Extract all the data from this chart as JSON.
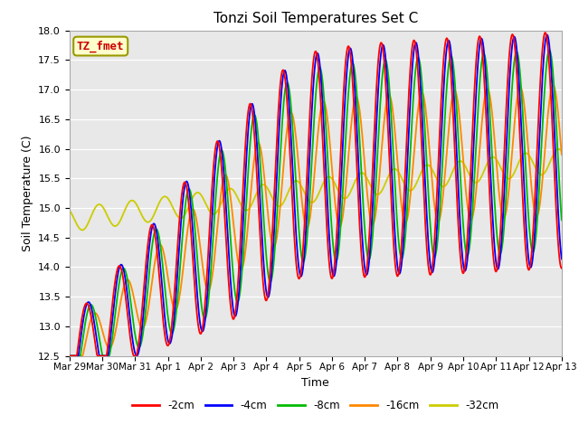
{
  "title": "Tonzi Soil Temperatures Set C",
  "xlabel": "Time",
  "ylabel": "Soil Temperature (C)",
  "ylim": [
    12.5,
    18.0
  ],
  "figure_facecolor": "#ffffff",
  "plot_bg_color": "#e8e8e8",
  "legend_label": "TZ_fmet",
  "legend_bg": "#ffffcc",
  "legend_border": "#999900",
  "series_colors": [
    "#ff0000",
    "#0000ff",
    "#00bb00",
    "#ff8800",
    "#cccc00"
  ],
  "series_labels": [
    "-2cm",
    "-4cm",
    "-8cm",
    "-16cm",
    "-32cm"
  ],
  "xtick_labels": [
    "Mar 29",
    "Mar 30",
    "Mar 31",
    "Apr 1",
    "Apr 2",
    "Apr 3",
    "Apr 4",
    "Apr 5",
    "Apr 6",
    "Apr 7",
    "Apr 8",
    "Apr 9",
    "Apr 10",
    "Apr 11",
    "Apr 12",
    "Apr 13"
  ]
}
